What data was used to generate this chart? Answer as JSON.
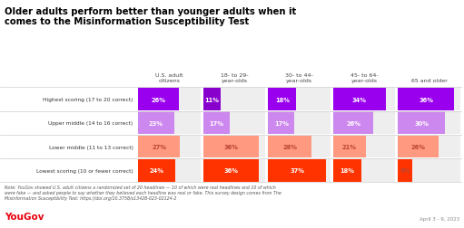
{
  "title": "Older adults perform better than younger adults when it\ncomes to the Misinformation Susceptibility Test",
  "col_headers": [
    "U.S. adult\ncitizens",
    "18- to 29-\nyear-olds",
    "30- to 44-\nyear-olds",
    "45- to 64-\nyear-olds",
    "65 and older"
  ],
  "row_labels": [
    "Highest scoring (17 to 20 correct)",
    "Upper middle (14 to 16 correct)",
    "Lower middle (11 to 13 correct)",
    "Lowest scoring (10 or fewer correct)"
  ],
  "values": [
    [
      26,
      11,
      18,
      34,
      36
    ],
    [
      23,
      17,
      17,
      26,
      30
    ],
    [
      27,
      36,
      28,
      21,
      26
    ],
    [
      24,
      36,
      37,
      18,
      9
    ]
  ],
  "bar_colors": [
    "#9900ee",
    "#cc88ee",
    "#ff9980",
    "#ff3300"
  ],
  "row2_bar_color": "#8800dd",
  "text_color_light": "#ffffff",
  "text_color_dark": "#bb4433",
  "note": "Note: YouGov showed U.S. adult citizens a randomized set of 20 headlines — 10 of which were real headlines and 10 of which\nwere fake — and asked people to say whether they believed each headline was real or fake. This survey design comes from The\nMisinformation Susceptibility Test: https://doi.org/10.3758/s13428-023-02124-2",
  "date": "April 3 - 9, 2023",
  "cell_bg": "#eeeeee",
  "separator_color": "#cccccc",
  "max_val": 40
}
